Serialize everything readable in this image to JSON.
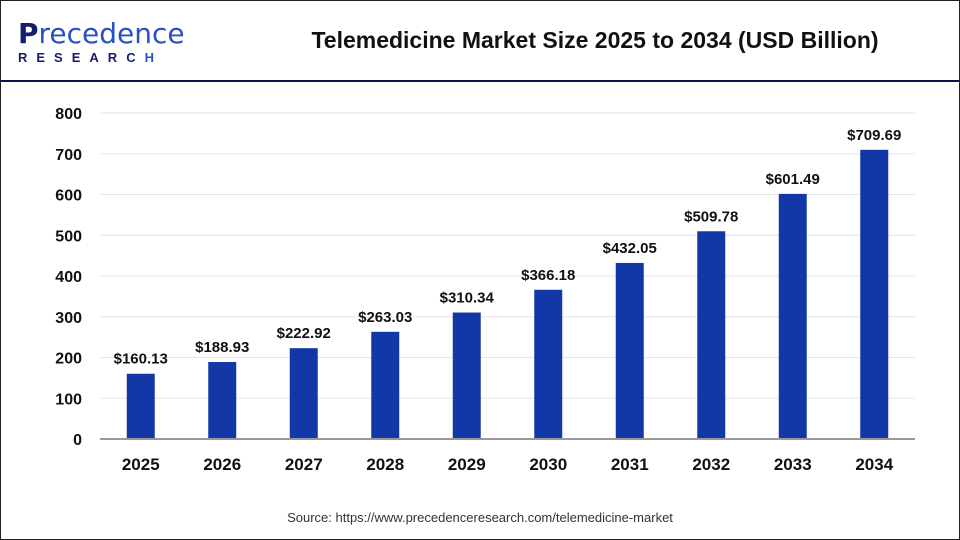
{
  "header": {
    "logo_text": "Precedence",
    "logo_subtext": "RESEARCH",
    "title": "Telemedicine Market Size 2025 to 2034 (USD Billion)"
  },
  "source": "Source: https://www.precedenceresearch.com/telemedicine-market",
  "colors": {
    "bar": "#1238a8",
    "grid": "#e6e6e6",
    "axis": "#999999"
  },
  "chart_data": {
    "type": "bar",
    "title": "Telemedicine Market Size 2025 to 2034 (USD Billion)",
    "categories": [
      "2025",
      "2026",
      "2027",
      "2028",
      "2029",
      "2030",
      "2031",
      "2032",
      "2033",
      "2034"
    ],
    "values": [
      160.13,
      188.93,
      222.92,
      263.03,
      310.34,
      366.18,
      432.05,
      509.78,
      601.49,
      709.69
    ],
    "data_labels": [
      "$160.13",
      "$188.93",
      "$222.92",
      "$263.03",
      "$310.34",
      "$366.18",
      "$432.05",
      "$509.78",
      "$601.49",
      "$709.69"
    ],
    "yticks": [
      0,
      100,
      200,
      300,
      400,
      500,
      600,
      700,
      800
    ],
    "ylim": [
      0,
      800
    ],
    "grid": true,
    "xlabel": "",
    "ylabel": ""
  }
}
